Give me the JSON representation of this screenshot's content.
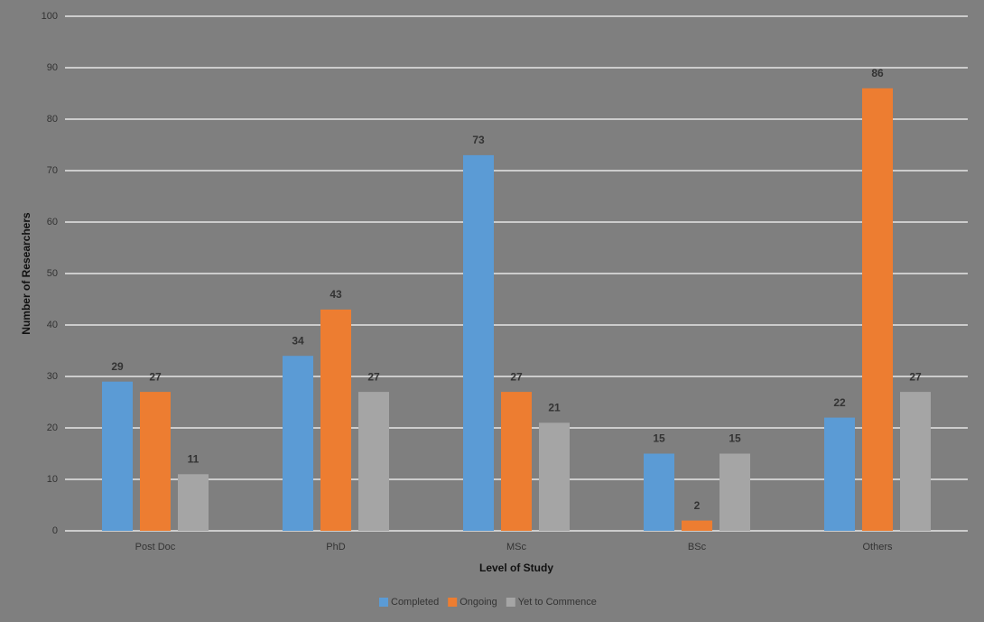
{
  "chart_data": {
    "type": "bar",
    "x_label": "Level of Study",
    "y_label": "Number of Researchers",
    "categories": [
      "Post Doc",
      "PhD",
      "MSc",
      "BSc",
      "Others"
    ],
    "series": [
      {
        "name": "Completed",
        "color": "#5b9bd5",
        "values": [
          29,
          34,
          73,
          15,
          22
        ]
      },
      {
        "name": "Ongoing",
        "color": "#ed7d31",
        "values": [
          27,
          43,
          27,
          2,
          86
        ]
      },
      {
        "name": "Yet to Commence",
        "color": "#a5a5a5",
        "values": [
          11,
          27,
          21,
          15,
          27
        ]
      }
    ],
    "ylim": [
      0,
      100
    ],
    "yticks": [
      0,
      10,
      20,
      30,
      40,
      50,
      60,
      70,
      80,
      90,
      100
    ],
    "grid": true,
    "legend": "bottom"
  }
}
